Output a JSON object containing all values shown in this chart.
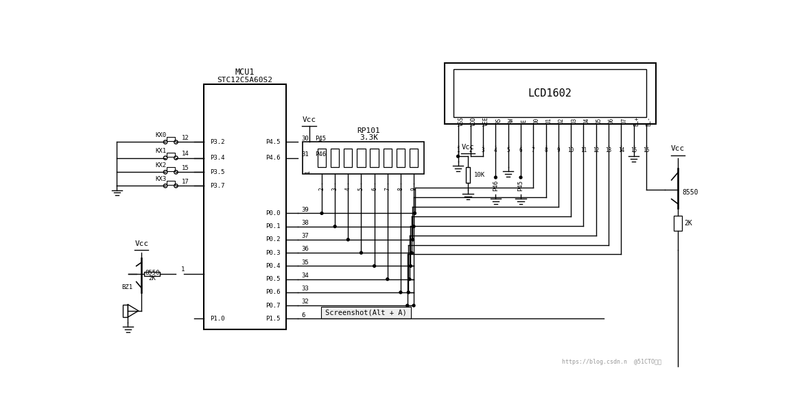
{
  "bg": "#ffffff",
  "lc": "#000000",
  "screenshot_text": "Screenshot(Alt + A)",
  "watermark": "https://blog.csdn.n  @51CTO博客",
  "mcu_label1": "MCU1",
  "mcu_label2": "STC12C5A60S2",
  "lcd_label": "LCD1602",
  "rp_label1": "RP101",
  "rp_label2": "3.3K"
}
